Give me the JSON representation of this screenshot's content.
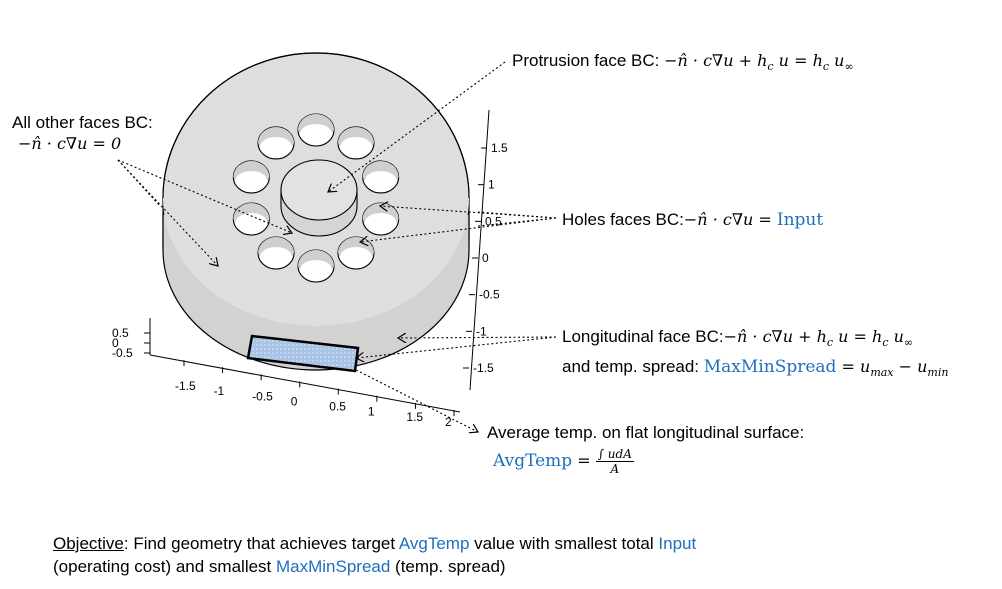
{
  "labels": {
    "protrusion": {
      "prefix": "Protrusion face BC: ",
      "equation": "−n̂ · c∇u + h_c u = h_c u_∞"
    },
    "other_faces": {
      "line1": "All other faces BC:",
      "equation": "−n̂ · c∇u = 0"
    },
    "holes": {
      "prefix": "Holes faces BC:",
      "equation": "−n̂ · c∇u = ",
      "input_word": "Input"
    },
    "longitudinal": {
      "line1_prefix": "Longitudinal face BC:",
      "line1_equation": "−n̂ · c∇u + h_c u = h_c u_∞",
      "line2_prefix": "and temp. spread: ",
      "spread_word": "MaxMinSpread",
      "spread_equation": " = u_max − u_min"
    },
    "average": {
      "line1": "Average temp. on flat longitudinal surface:",
      "avgtemp_word": "AvgTemp",
      "equals": " = ",
      "numerator": "∫ udA",
      "denominator": "A"
    }
  },
  "objective": {
    "heading": "Objective",
    "line1_a": ": Find geometry that achieves target ",
    "avgtemp": "AvgTemp",
    "line1_b": " value with smallest total ",
    "input": "Input",
    "line2_a": "(operating cost) and smallest ",
    "maxminspread": "MaxMinSpread",
    "line2_b": " (temp. spread)"
  },
  "axes": {
    "y_right_ticks": [
      "1.5",
      "1",
      "0.5",
      "0",
      "-0.5",
      "-1",
      "-1.5"
    ],
    "x_bottom_ticks": [
      "-1.5",
      "-1",
      "-0.5",
      "0",
      "0.5",
      "1",
      "1.5",
      "2"
    ],
    "z_left_ticks": [
      "0.5",
      "0",
      "-0.5"
    ]
  },
  "colors": {
    "accent_blue": "#1f6fbf",
    "body_gray": "#dcdcdc",
    "edge": "#000000",
    "flat_face": "#a9c3e6"
  }
}
